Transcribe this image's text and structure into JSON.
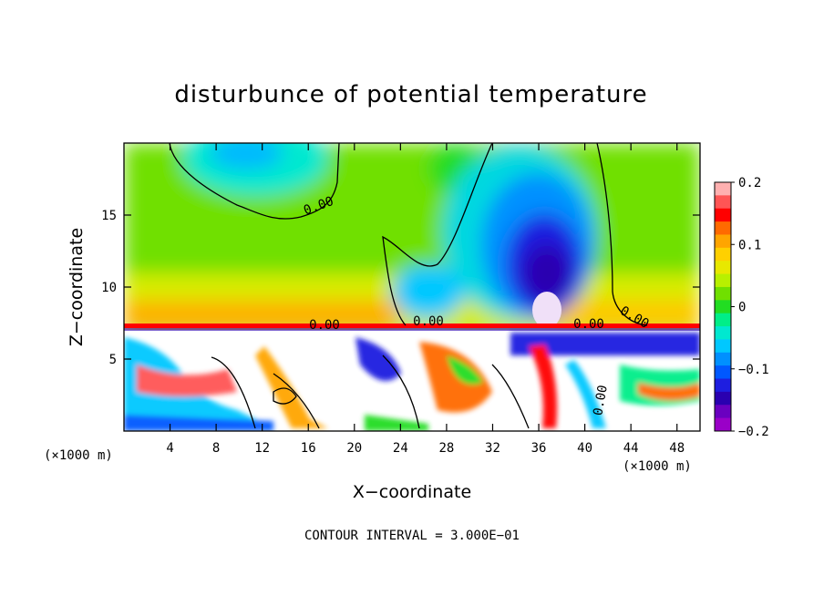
{
  "chart_data": {
    "type": "heatmap",
    "title": "disturbunce of potential temperature",
    "xlabel": "X−coordinate",
    "ylabel": "Z−coordinate",
    "x_unit": "(×1000 m)",
    "x_unit_right": "(×1000 m)",
    "xlim": [
      0,
      50
    ],
    "ylim": [
      0,
      20
    ],
    "xticks": [
      4,
      8,
      12,
      16,
      20,
      24,
      28,
      32,
      36,
      40,
      44,
      48
    ],
    "yticks": [
      5,
      10,
      15
    ],
    "colorbar": {
      "ticks": [
        "0.2",
        "0.1",
        "0",
        "−0.1",
        "−0.2"
      ],
      "tick_values": [
        0.2,
        0.1,
        0,
        -0.1,
        -0.2
      ],
      "colors": [
        "#ffb0b0",
        "#ff5555",
        "#ff0000",
        "#ff6a00",
        "#ffa500",
        "#ffd000",
        "#e8e800",
        "#b8f000",
        "#70e000",
        "#22dd22",
        "#00ee88",
        "#00e8d0",
        "#00c8ff",
        "#0090ff",
        "#0058ff",
        "#1e1ee0",
        "#2a00b0",
        "#6a00c0",
        "#9a00c8"
      ]
    },
    "contour_labels": [
      "0.00",
      "0.00",
      "0.00",
      "0.00",
      "0.00",
      "0.00"
    ],
    "footer": "CONTOUR INTERVAL =  3.000E−01"
  }
}
